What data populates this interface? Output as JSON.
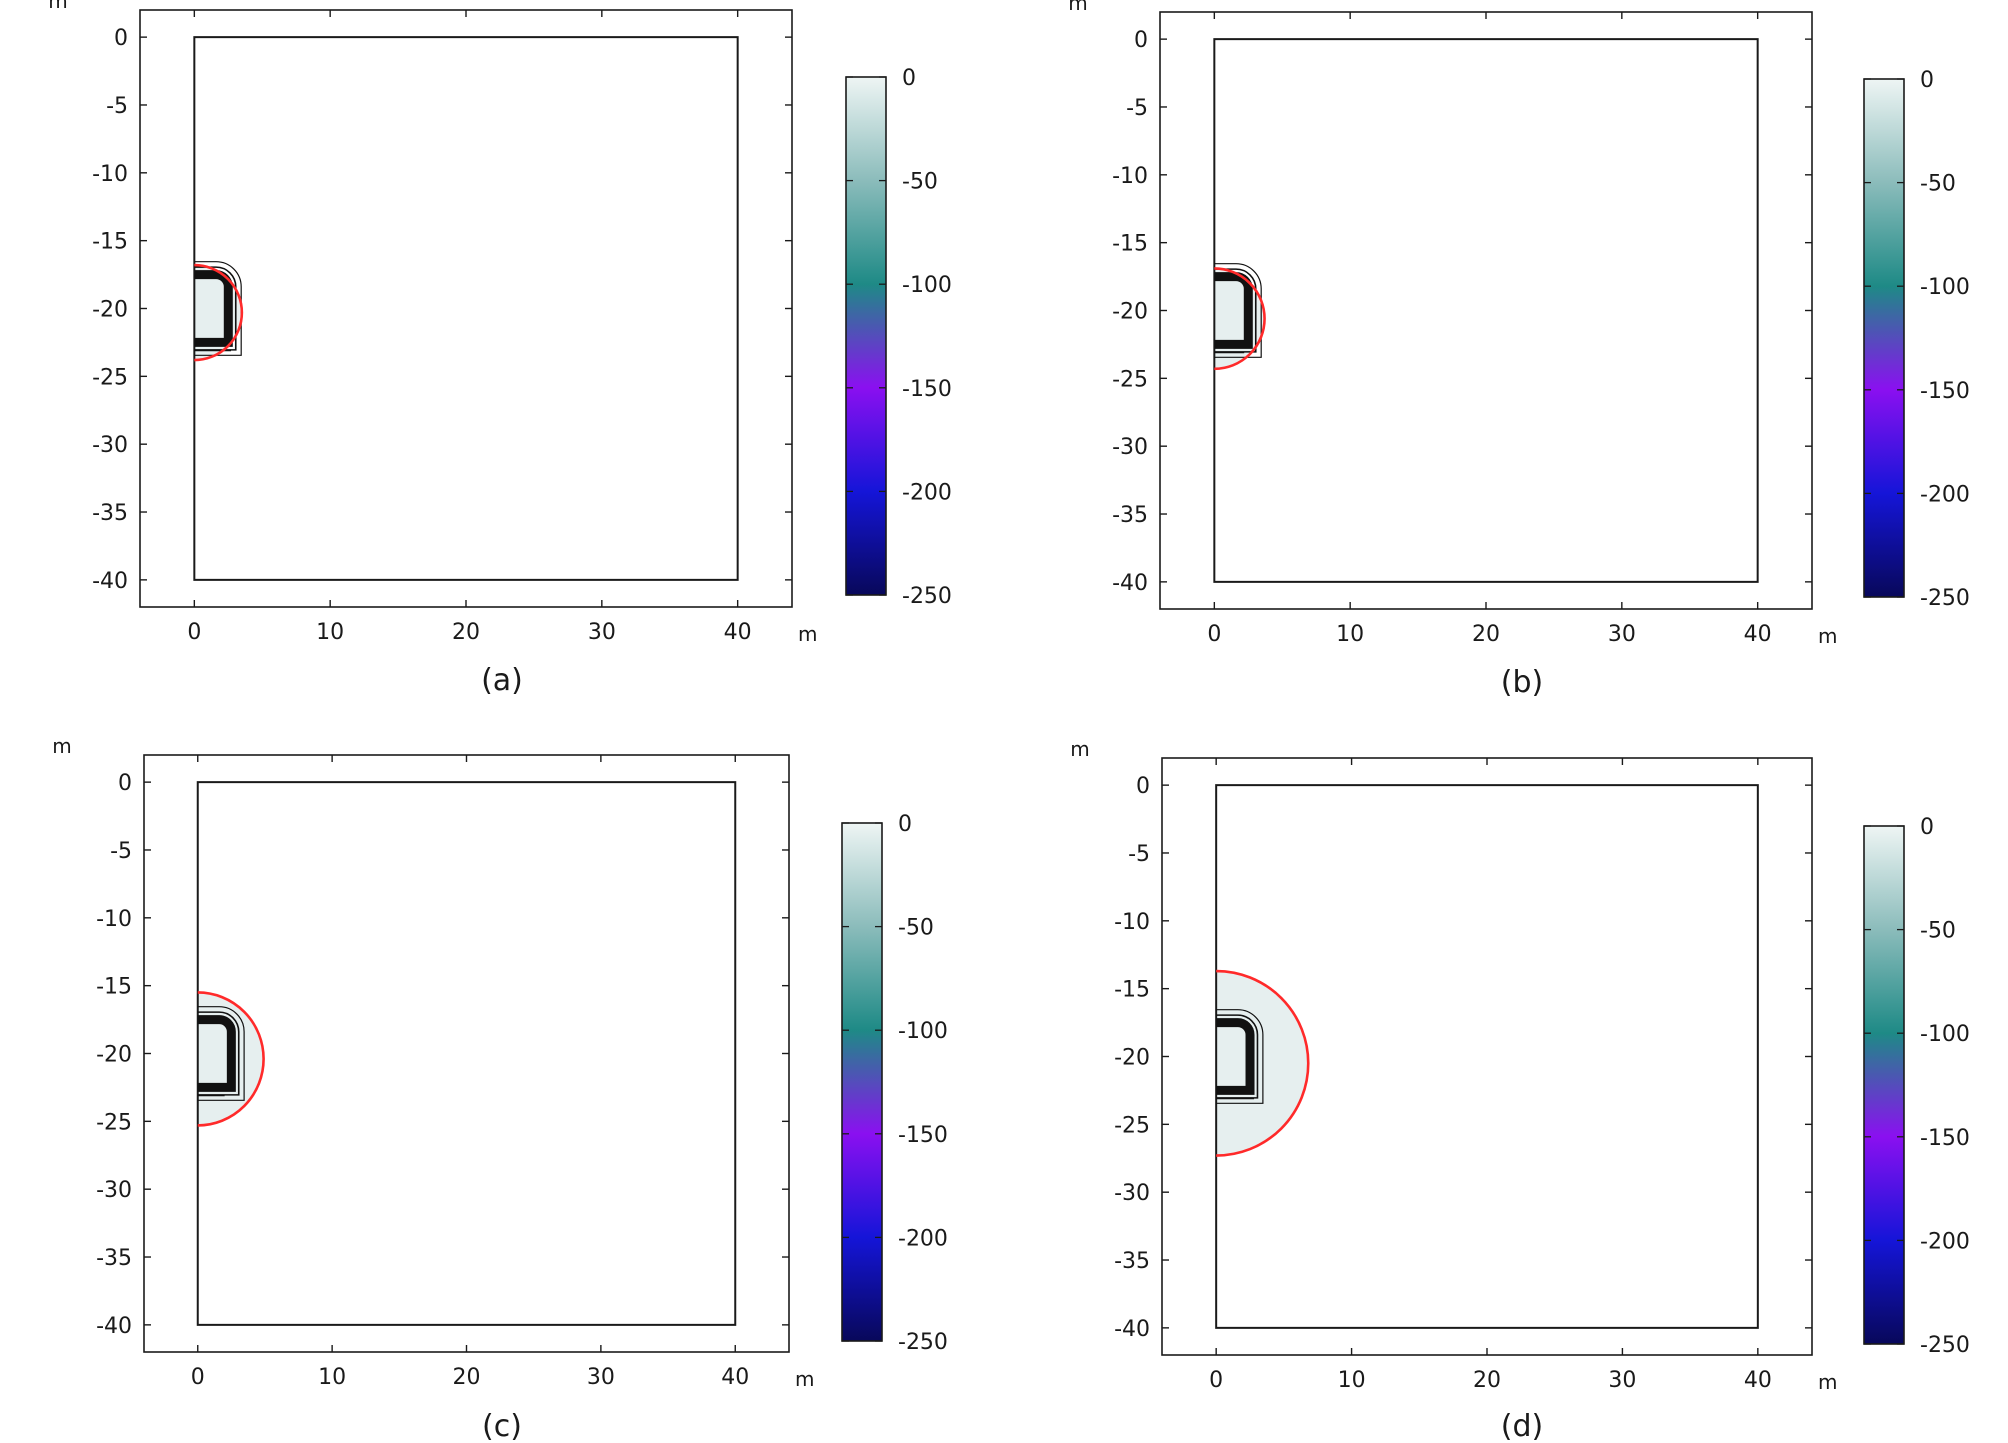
{
  "panels_caption_font": "regular",
  "chart_data": [
    {
      "type": "contour",
      "panel_label": "(a)",
      "xlabel": "m",
      "ylabel": "m",
      "xlim": [
        -4,
        44
      ],
      "ylim": [
        -42,
        2
      ],
      "x_ticks": [
        0,
        10,
        20,
        30,
        40
      ],
      "y_ticks": [
        0,
        -5,
        -10,
        -15,
        -20,
        -25,
        -30,
        -35,
        -40
      ],
      "domain_rect": {
        "x": [
          0,
          40
        ],
        "y": [
          -40,
          0
        ]
      },
      "tunnel": {
        "center_y": -20,
        "half_height": 2.5,
        "straight_width": 1.6,
        "lining": 1.0,
        "floor_extension": 2.7
      },
      "frozen_zone": {
        "center": [
          0,
          -20.3
        ],
        "radius": 3.5,
        "color": "#ff2a2a"
      },
      "colorbar": {
        "ticks": [
          0,
          -50,
          -100,
          -150,
          -200,
          -250
        ],
        "range": [
          -250,
          0
        ],
        "colors": [
          "#08085a",
          "#1515d8",
          "#8a10f0",
          "#1e8a86",
          "#8bbcbb",
          "#eef5f4"
        ]
      }
    },
    {
      "type": "contour",
      "panel_label": "(b)",
      "xlabel": "m",
      "ylabel": "m",
      "xlim": [
        -4,
        44
      ],
      "ylim": [
        -42,
        2
      ],
      "x_ticks": [
        0,
        10,
        20,
        30,
        40
      ],
      "y_ticks": [
        0,
        -5,
        -10,
        -15,
        -20,
        -25,
        -30,
        -35,
        -40
      ],
      "domain_rect": {
        "x": [
          0,
          40
        ],
        "y": [
          -40,
          0
        ]
      },
      "tunnel": {
        "center_y": -20,
        "half_height": 2.5,
        "straight_width": 1.6,
        "lining": 1.0,
        "floor_extension": 2.2
      },
      "frozen_zone": {
        "center": [
          0,
          -20.6
        ],
        "radius": 3.7,
        "color": "#ff2a2a"
      },
      "colorbar": {
        "ticks": [
          0,
          -50,
          -100,
          -150,
          -200,
          -250
        ],
        "range": [
          -250,
          0
        ],
        "colors": [
          "#08085a",
          "#1515d8",
          "#8a10f0",
          "#1e8a86",
          "#8bbcbb",
          "#eef5f4"
        ]
      }
    },
    {
      "type": "contour",
      "panel_label": "(c)",
      "xlabel": "m",
      "ylabel": "m",
      "xlim": [
        -4,
        44
      ],
      "ylim": [
        -42,
        2
      ],
      "x_ticks": [
        0,
        10,
        20,
        30,
        40
      ],
      "y_ticks": [
        0,
        -5,
        -10,
        -15,
        -20,
        -25,
        -30,
        -35,
        -40
      ],
      "domain_rect": {
        "x": [
          0,
          40
        ],
        "y": [
          -40,
          0
        ]
      },
      "tunnel": {
        "center_y": -20,
        "half_height": 2.5,
        "straight_width": 1.6,
        "lining": 1.0,
        "floor_extension": 2.0
      },
      "frozen_zone": {
        "center": [
          0,
          -20.4
        ],
        "radius": 4.9,
        "color": "#ff2a2a"
      },
      "colorbar": {
        "ticks": [
          0,
          -50,
          -100,
          -150,
          -200,
          -250
        ],
        "range": [
          -250,
          0
        ],
        "colors": [
          "#08085a",
          "#1515d8",
          "#8a10f0",
          "#1e8a86",
          "#8bbcbb",
          "#eef5f4"
        ]
      }
    },
    {
      "type": "contour",
      "panel_label": "(d)",
      "xlabel": "m",
      "ylabel": "m",
      "xlim": [
        -4,
        44
      ],
      "ylim": [
        -42,
        2
      ],
      "x_ticks": [
        0,
        10,
        20,
        30,
        40
      ],
      "y_ticks": [
        0,
        -5,
        -10,
        -15,
        -20,
        -25,
        -30,
        -35,
        -40
      ],
      "domain_rect": {
        "x": [
          0,
          40
        ],
        "y": [
          -40,
          0
        ]
      },
      "tunnel": {
        "center_y": -20,
        "half_height": 2.5,
        "straight_width": 1.6,
        "lining": 1.0,
        "floor_extension": 2.8
      },
      "frozen_zone": {
        "center": [
          0,
          -20.5
        ],
        "radius": 6.8,
        "color": "#ff2a2a"
      },
      "colorbar": {
        "ticks": [
          0,
          -50,
          -100,
          -150,
          -200,
          -250
        ],
        "range": [
          -250,
          0
        ],
        "colors": [
          "#08085a",
          "#1515d8",
          "#8a10f0",
          "#1e8a86",
          "#8bbcbb",
          "#eef5f4"
        ]
      }
    }
  ]
}
